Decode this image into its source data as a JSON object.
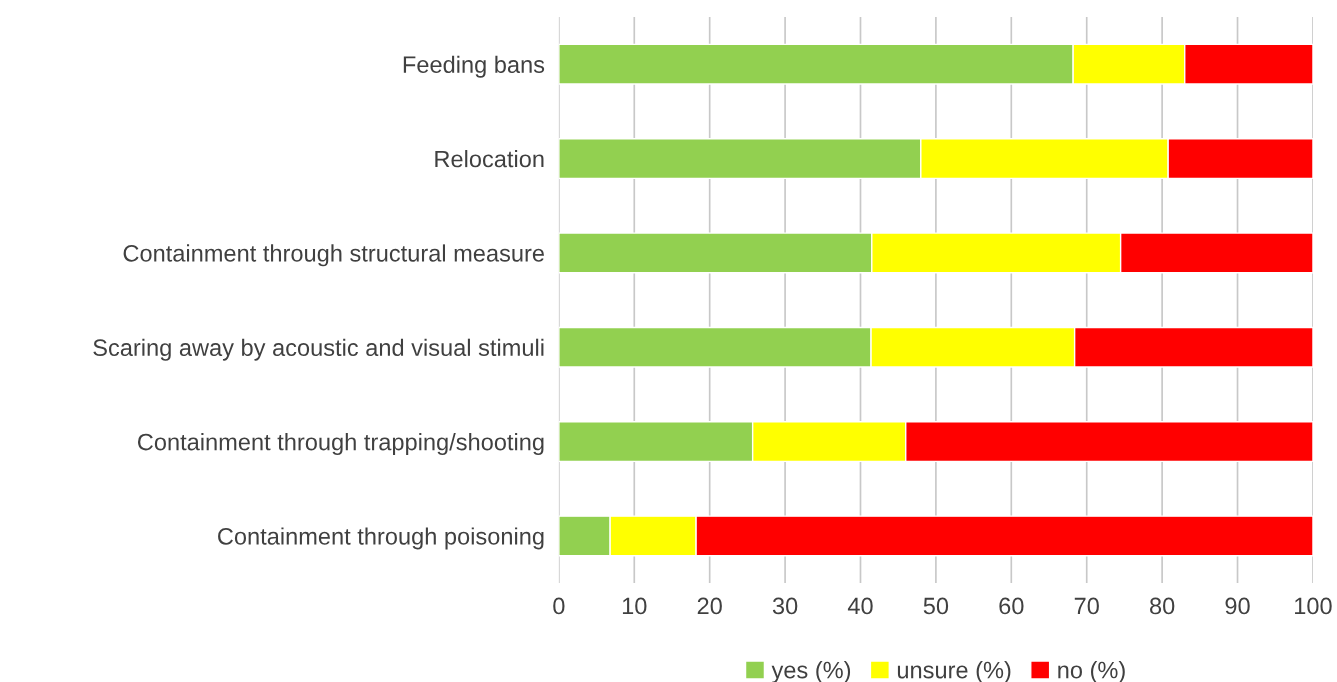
{
  "chart_data": {
    "type": "bar",
    "orientation": "horizontal",
    "stacked": true,
    "categories": [
      "Feeding bans",
      "Relocation",
      "Containment through structural measure",
      "Scaring away by acoustic and visual stimuli",
      "Containment through trapping/shooting",
      "Containment through poisoning"
    ],
    "series": [
      {
        "name": "yes (%)",
        "color": "#92d050",
        "values": [
          68.2,
          48.0,
          41.5,
          41.4,
          25.7,
          6.8
        ]
      },
      {
        "name": "unsure (%)",
        "color": "#ffff00",
        "values": [
          14.8,
          32.8,
          33.0,
          27.0,
          20.3,
          11.4
        ]
      },
      {
        "name": "no (%)",
        "color": "#ff0000",
        "values": [
          17.0,
          19.2,
          25.5,
          31.6,
          54.0,
          81.8
        ]
      }
    ],
    "xlim": [
      0,
      100
    ],
    "xticks": [
      0,
      10,
      20,
      30,
      40,
      50,
      60,
      70,
      80,
      90,
      100
    ],
    "grid": "x",
    "legend": "bottom"
  }
}
